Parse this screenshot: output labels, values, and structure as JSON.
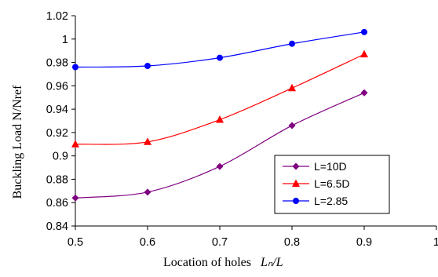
{
  "chart_data": {
    "type": "line",
    "title": "",
    "xlabel": "Location of holes",
    "xlabel_math": "Lₙ/L",
    "ylabel": "Buckling Load N/Nref",
    "xlim": [
      0.5,
      1
    ],
    "ylim": [
      0.84,
      1.02
    ],
    "xticks": [
      "0.5",
      "0.6",
      "0.7",
      "0.8",
      "0.9",
      "1"
    ],
    "yticks": [
      "0.84",
      "0.86",
      "0.88",
      "0.9",
      "0.92",
      "0.94",
      "0.96",
      "0.98",
      "1",
      "1.02"
    ],
    "grid": false,
    "legend_position": "bottom-right",
    "series": [
      {
        "name": "L=10D",
        "color": "#800080",
        "marker": "diamond",
        "x": [
          0.5,
          0.6,
          0.7,
          0.8,
          0.9
        ],
        "values": [
          0.864,
          0.869,
          0.891,
          0.926,
          0.954
        ]
      },
      {
        "name": "L=6.5D",
        "color": "#ff0000",
        "marker": "triangle",
        "x": [
          0.5,
          0.6,
          0.7,
          0.8,
          0.9
        ],
        "values": [
          0.91,
          0.912,
          0.931,
          0.958,
          0.987
        ]
      },
      {
        "name": "L=2.85",
        "color": "#0000ff",
        "marker": "circle",
        "x": [
          0.5,
          0.6,
          0.7,
          0.8,
          0.9
        ],
        "values": [
          0.976,
          0.977,
          0.984,
          0.996,
          1.006
        ]
      }
    ]
  }
}
